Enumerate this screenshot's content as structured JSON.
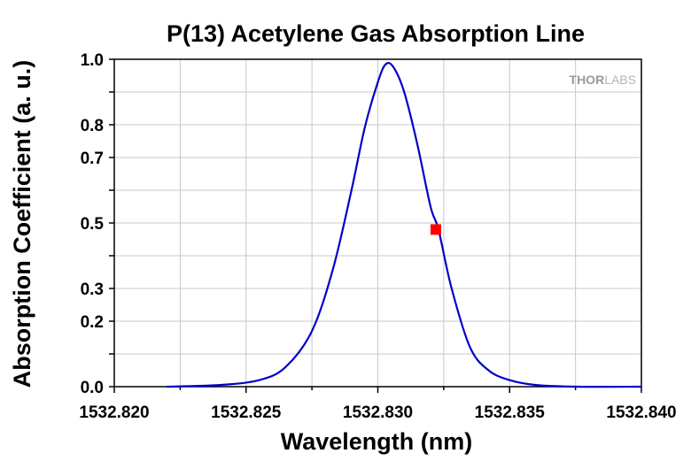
{
  "chart_data": {
    "type": "line",
    "title": "P(13) Acetylene Gas Absorption Line",
    "xlabel": "Wavelength (nm)",
    "ylabel": "Absorption Coefficient (a. u.)",
    "xlim": [
      1532.82,
      1532.84
    ],
    "ylim": [
      0.0,
      1.0
    ],
    "x_ticks": [
      "1532.820",
      "1532.825",
      "1532.830",
      "1532.835",
      "1532.840"
    ],
    "y_ticks": [
      "0.0",
      "0.2",
      "0.3",
      "0.5",
      "0.7",
      "0.8",
      "1.0"
    ],
    "grid": true,
    "series": [
      {
        "color": "#0000cc",
        "x": [
          1532.822,
          1532.824,
          1532.8255,
          1532.8265,
          1532.8275,
          1532.8283,
          1532.829,
          1532.8295,
          1532.83,
          1532.8303,
          1532.8306,
          1532.831,
          1532.8315,
          1532.832,
          1532.8323,
          1532.8328,
          1532.8335,
          1532.8342,
          1532.835,
          1532.836,
          1532.8375,
          1532.84
        ],
        "y": [
          0.0,
          0.005,
          0.02,
          0.06,
          0.17,
          0.36,
          0.6,
          0.79,
          0.93,
          0.985,
          0.975,
          0.9,
          0.74,
          0.55,
          0.48,
          0.3,
          0.12,
          0.05,
          0.02,
          0.005,
          0.0,
          0.0
        ]
      }
    ],
    "marker": {
      "x": 1532.8322,
      "y": 0.48,
      "color": "#ff0000",
      "shape": "square"
    },
    "watermark": {
      "bold": "THOR",
      "light": "LABS"
    }
  }
}
